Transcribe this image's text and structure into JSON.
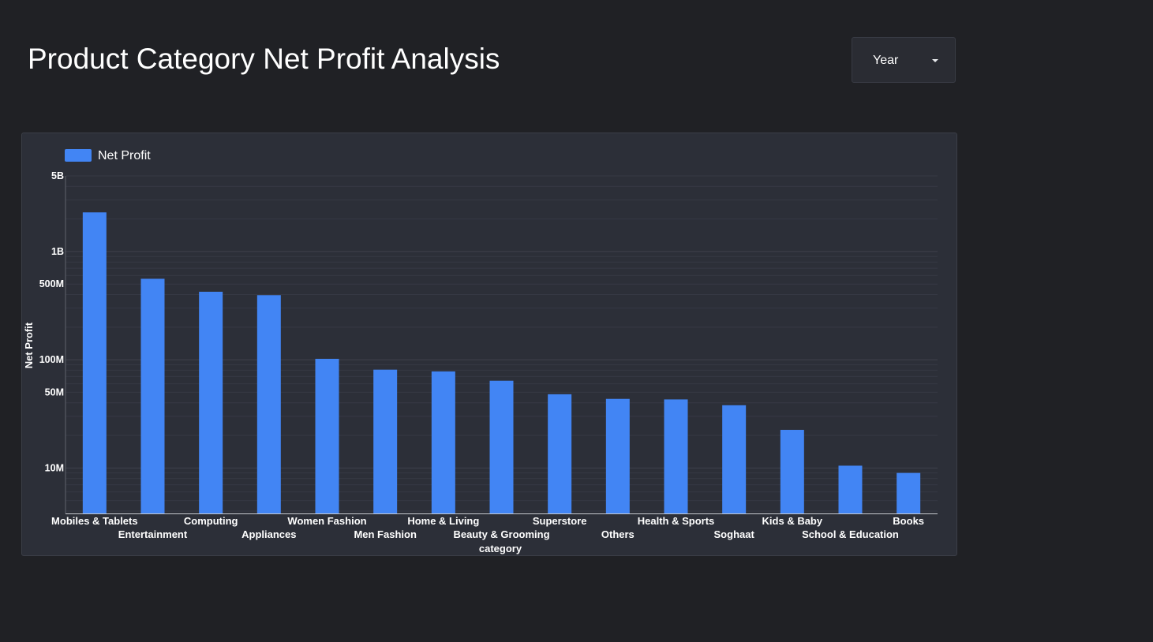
{
  "header": {
    "title": "Product Category Net Profit Analysis"
  },
  "filters": {
    "year_label": "Year"
  },
  "colors": {
    "background": "#202125",
    "card": "#2c2f38",
    "bar": "#4285f4"
  },
  "chart_data": {
    "type": "bar",
    "title": "",
    "xlabel": "category",
    "ylabel": "Net Profit",
    "yscale": "log",
    "ylim": [
      3800000,
      5000000000
    ],
    "yticks": [
      {
        "value": 10000000,
        "label": "10M"
      },
      {
        "value": 50000000,
        "label": "50M"
      },
      {
        "value": 100000000,
        "label": "100M"
      },
      {
        "value": 500000000,
        "label": "500M"
      },
      {
        "value": 1000000000,
        "label": "1B"
      },
      {
        "value": 5000000000,
        "label": "5B"
      }
    ],
    "legend": {
      "position": "top-left",
      "entries": [
        "Net Profit"
      ]
    },
    "grid": true,
    "categories": [
      "Mobiles & Tablets",
      "Entertainment",
      "Computing",
      "Appliances",
      "Women Fashion",
      "Men Fashion",
      "Home & Living",
      "Beauty & Grooming",
      "Superstore",
      "Others",
      "Health & Sports",
      "Soghaat",
      "Kids & Baby",
      "School & Education",
      "Books"
    ],
    "series": [
      {
        "name": "Net Profit",
        "values": [
          2300000000,
          560000000,
          425000000,
          395000000,
          102000000,
          81000000,
          78000000,
          64000000,
          48000000,
          43500000,
          43000000,
          38000000,
          22500000,
          10500000,
          9000000
        ]
      }
    ]
  }
}
